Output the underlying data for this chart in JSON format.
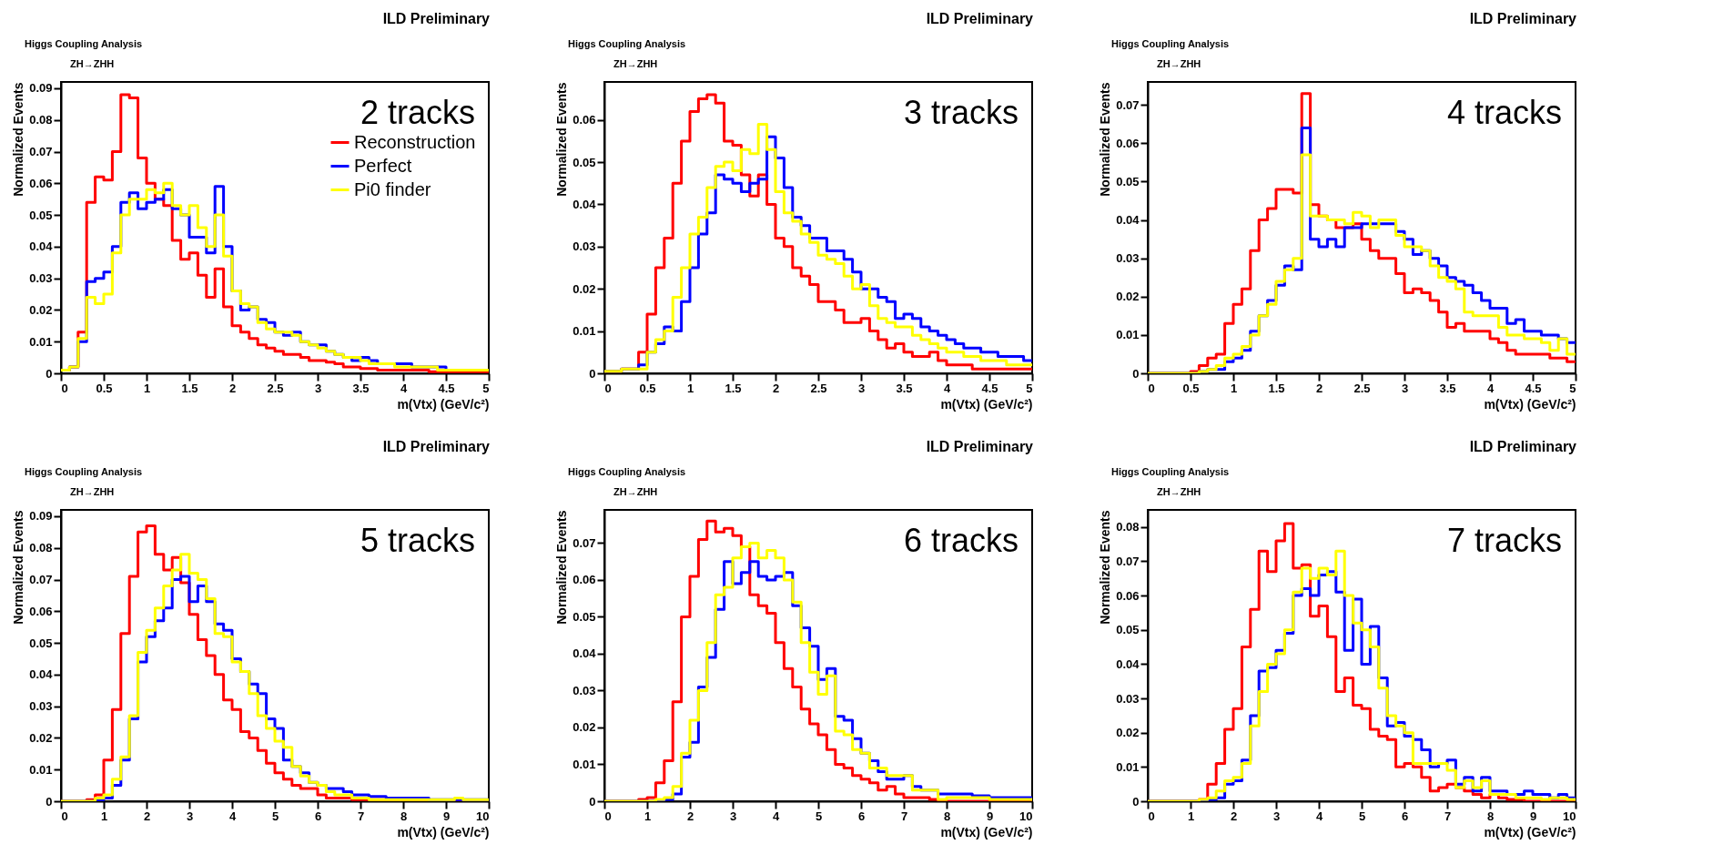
{
  "chart_data": [
    {
      "type": "histogram",
      "title": "ILD Preliminary",
      "annotations": [
        "Higgs Coupling Analysis",
        "ZH→ZHH",
        "2 tracks"
      ],
      "xlabel": "m(Vtx) (GeV/c²)",
      "ylabel": "Normalized Events",
      "legend": "top right",
      "xlim": [
        0,
        5
      ],
      "ylim": [
        0,
        0.092
      ],
      "xticks": [
        0,
        0.5,
        1,
        1.5,
        2,
        2.5,
        3,
        3.5,
        4,
        4.5,
        5
      ],
      "yticks": [
        0,
        0.01,
        0.02,
        0.03,
        0.04,
        0.05,
        0.06,
        0.07,
        0.08,
        0.09
      ],
      "bins": [
        0,
        0.1,
        0.2,
        0.3,
        0.4,
        0.5,
        0.6,
        0.7,
        0.8,
        0.9,
        1,
        1.1,
        1.2,
        1.3,
        1.4,
        1.5,
        1.6,
        1.7,
        1.8,
        1.9,
        2,
        2.1,
        2.2,
        2.3,
        2.4,
        2.5,
        2.6,
        2.7,
        2.8,
        2.9,
        3,
        3.1,
        3.2,
        3.3,
        3.4,
        3.5,
        3.6,
        3.7,
        3.8,
        3.9,
        4,
        4.1,
        4.2,
        4.3,
        4.4,
        4.5,
        4.6,
        4.7,
        4.8,
        4.9,
        5
      ],
      "series": [
        {
          "name": "Reconstruction",
          "color": "#ff0000",
          "values": [
            0.001,
            0.002,
            0.013,
            0.054,
            0.062,
            0.061,
            0.07,
            0.088,
            0.087,
            0.068,
            0.06,
            0.055,
            0.053,
            0.042,
            0.036,
            0.038,
            0.031,
            0.024,
            0.033,
            0.021,
            0.015,
            0.013,
            0.011,
            0.009,
            0.008,
            0.007,
            0.006,
            0.006,
            0.005,
            0.004,
            0.004,
            0.0035,
            0.003,
            0.002,
            0.002,
            0.0015,
            0.0015,
            0.001,
            0.001,
            0.001,
            0.001,
            0.001,
            0.001,
            0.0005,
            0.0005,
            0.0005,
            0.0005,
            0.0005,
            0.0005,
            0.0005
          ]
        },
        {
          "name": "Perfect",
          "color": "#0000ff",
          "values": [
            0.001,
            0.002,
            0.01,
            0.029,
            0.03,
            0.032,
            0.04,
            0.054,
            0.057,
            0.052,
            0.054,
            0.055,
            0.058,
            0.052,
            0.05,
            0.043,
            0.043,
            0.038,
            0.059,
            0.04,
            0.026,
            0.02,
            0.021,
            0.017,
            0.016,
            0.013,
            0.012,
            0.013,
            0.01,
            0.009,
            0.009,
            0.007,
            0.006,
            0.005,
            0.004,
            0.005,
            0.004,
            0.003,
            0.003,
            0.003,
            0.003,
            0.002,
            0.002,
            0.002,
            0.002,
            0.001,
            0.001,
            0.001,
            0.001,
            0.001
          ]
        },
        {
          "name": "Pi0 finder",
          "color": "#ffff00",
          "values": [
            0.001,
            0.002,
            0.011,
            0.024,
            0.022,
            0.025,
            0.038,
            0.05,
            0.055,
            0.055,
            0.058,
            0.057,
            0.06,
            0.053,
            0.05,
            0.053,
            0.046,
            0.04,
            0.05,
            0.037,
            0.026,
            0.022,
            0.021,
            0.016,
            0.014,
            0.013,
            0.013,
            0.012,
            0.01,
            0.009,
            0.008,
            0.007,
            0.006,
            0.005,
            0.005,
            0.004,
            0.003,
            0.003,
            0.003,
            0.002,
            0.002,
            0.002,
            0.002,
            0.002,
            0.001,
            0.001,
            0.001,
            0.001,
            0.001,
            0.001
          ]
        }
      ]
    },
    {
      "type": "histogram",
      "title": "ILD Preliminary",
      "annotations": [
        "Higgs Coupling Analysis",
        "ZH→ZHH",
        "3 tracks"
      ],
      "xlabel": "m(Vtx) (GeV/c²)",
      "ylabel": "Normalized Events",
      "xlim": [
        0,
        5
      ],
      "ylim": [
        0,
        0.069
      ],
      "xticks": [
        0,
        0.5,
        1,
        1.5,
        2,
        2.5,
        3,
        3.5,
        4,
        4.5,
        5
      ],
      "yticks": [
        0,
        0.01,
        0.02,
        0.03,
        0.04,
        0.05,
        0.06
      ],
      "bins": [
        0,
        0.1,
        0.2,
        0.3,
        0.4,
        0.5,
        0.6,
        0.7,
        0.8,
        0.9,
        1,
        1.1,
        1.2,
        1.3,
        1.4,
        1.5,
        1.6,
        1.7,
        1.8,
        1.9,
        2,
        2.1,
        2.2,
        2.3,
        2.4,
        2.5,
        2.6,
        2.7,
        2.8,
        2.9,
        3,
        3.1,
        3.2,
        3.3,
        3.4,
        3.5,
        3.6,
        3.7,
        3.8,
        3.9,
        4,
        4.1,
        4.2,
        4.3,
        4.4,
        4.5,
        4.6,
        4.7,
        4.8,
        4.9,
        5
      ],
      "series": [
        {
          "color": "#ff0000",
          "values": [
            0.0005,
            0.0005,
            0.001,
            0.001,
            0.005,
            0.014,
            0.025,
            0.032,
            0.045,
            0.055,
            0.062,
            0.065,
            0.066,
            0.064,
            0.055,
            0.054,
            0.047,
            0.042,
            0.047,
            0.04,
            0.032,
            0.03,
            0.025,
            0.023,
            0.021,
            0.017,
            0.017,
            0.015,
            0.012,
            0.012,
            0.013,
            0.01,
            0.008,
            0.006,
            0.007,
            0.005,
            0.004,
            0.004,
            0.005,
            0.003,
            0.002,
            0.002,
            0.002,
            0.001,
            0.001,
            0.001,
            0.001,
            0.001,
            0.001,
            0.001
          ]
        },
        {
          "color": "#0000ff",
          "values": [
            0.0005,
            0.0005,
            0.001,
            0.001,
            0.002,
            0.005,
            0.007,
            0.011,
            0.01,
            0.017,
            0.025,
            0.033,
            0.038,
            0.047,
            0.046,
            0.045,
            0.043,
            0.045,
            0.046,
            0.056,
            0.051,
            0.044,
            0.037,
            0.035,
            0.032,
            0.032,
            0.029,
            0.029,
            0.027,
            0.024,
            0.02,
            0.02,
            0.018,
            0.017,
            0.013,
            0.014,
            0.013,
            0.011,
            0.01,
            0.009,
            0.008,
            0.007,
            0.006,
            0.006,
            0.005,
            0.005,
            0.004,
            0.004,
            0.004,
            0.003
          ]
        },
        {
          "color": "#ffff00",
          "values": [
            0.0005,
            0.0005,
            0.001,
            0.001,
            0.001,
            0.005,
            0.008,
            0.01,
            0.018,
            0.025,
            0.033,
            0.037,
            0.044,
            0.049,
            0.05,
            0.048,
            0.053,
            0.052,
            0.059,
            0.053,
            0.043,
            0.038,
            0.036,
            0.033,
            0.031,
            0.028,
            0.027,
            0.026,
            0.023,
            0.02,
            0.021,
            0.016,
            0.013,
            0.012,
            0.011,
            0.011,
            0.009,
            0.008,
            0.007,
            0.006,
            0.005,
            0.005,
            0.004,
            0.004,
            0.003,
            0.003,
            0.003,
            0.002,
            0.002,
            0.002
          ]
        }
      ]
    },
    {
      "type": "histogram",
      "title": "ILD Preliminary",
      "annotations": [
        "Higgs Coupling Analysis",
        "ZH→ZHH",
        "4 tracks"
      ],
      "xlabel": "m(Vtx) (GeV/c²)",
      "ylabel": "Normalized Events",
      "xlim": [
        0,
        5
      ],
      "ylim": [
        0,
        0.076
      ],
      "xticks": [
        0,
        0.5,
        1,
        1.5,
        2,
        2.5,
        3,
        3.5,
        4,
        4.5,
        5
      ],
      "yticks": [
        0,
        0.01,
        0.02,
        0.03,
        0.04,
        0.05,
        0.06,
        0.07
      ],
      "bins": [
        0,
        0.1,
        0.2,
        0.3,
        0.4,
        0.5,
        0.6,
        0.7,
        0.8,
        0.9,
        1,
        1.1,
        1.2,
        1.3,
        1.4,
        1.5,
        1.6,
        1.7,
        1.8,
        1.9,
        2,
        2.1,
        2.2,
        2.3,
        2.4,
        2.5,
        2.6,
        2.7,
        2.8,
        2.9,
        3,
        3.1,
        3.2,
        3.3,
        3.4,
        3.5,
        3.6,
        3.7,
        3.8,
        3.9,
        4,
        4.1,
        4.2,
        4.3,
        4.4,
        4.5,
        4.6,
        4.7,
        4.8,
        4.9,
        5
      ],
      "series": [
        {
          "color": "#ff0000",
          "values": [
            0,
            0,
            0,
            0,
            0,
            0.0005,
            0.002,
            0.004,
            0.005,
            0.013,
            0.018,
            0.022,
            0.032,
            0.04,
            0.043,
            0.048,
            0.048,
            0.047,
            0.073,
            0.044,
            0.041,
            0.04,
            0.038,
            0.038,
            0.039,
            0.035,
            0.032,
            0.03,
            0.03,
            0.026,
            0.021,
            0.022,
            0.021,
            0.019,
            0.016,
            0.012,
            0.013,
            0.011,
            0.011,
            0.011,
            0.009,
            0.008,
            0.006,
            0.005,
            0.005,
            0.005,
            0.005,
            0.004,
            0.004,
            0.003
          ]
        },
        {
          "color": "#0000ff",
          "values": [
            0,
            0,
            0,
            0,
            0,
            0,
            0.0005,
            0.001,
            0.001,
            0.003,
            0.004,
            0.006,
            0.011,
            0.015,
            0.019,
            0.023,
            0.028,
            0.027,
            0.064,
            0.035,
            0.033,
            0.035,
            0.033,
            0.038,
            0.038,
            0.039,
            0.039,
            0.039,
            0.039,
            0.037,
            0.035,
            0.031,
            0.032,
            0.03,
            0.028,
            0.025,
            0.024,
            0.023,
            0.021,
            0.019,
            0.017,
            0.017,
            0.013,
            0.014,
            0.011,
            0.011,
            0.01,
            0.01,
            0.009,
            0.008
          ]
        },
        {
          "color": "#ffff00",
          "values": [
            0,
            0,
            0,
            0,
            0,
            0,
            0.0005,
            0.001,
            0.002,
            0.004,
            0.005,
            0.007,
            0.01,
            0.015,
            0.018,
            0.024,
            0.027,
            0.03,
            0.057,
            0.041,
            0.041,
            0.04,
            0.04,
            0.039,
            0.042,
            0.041,
            0.038,
            0.04,
            0.04,
            0.036,
            0.033,
            0.033,
            0.032,
            0.028,
            0.025,
            0.024,
            0.022,
            0.016,
            0.015,
            0.015,
            0.015,
            0.012,
            0.01,
            0.01,
            0.009,
            0.009,
            0.008,
            0.006,
            0.009,
            0.005
          ]
        }
      ]
    },
    {
      "type": "histogram",
      "title": "ILD Preliminary",
      "annotations": [
        "Higgs Coupling Analysis",
        "ZH→ZHH",
        "5 tracks"
      ],
      "xlabel": "m(Vtx) (GeV/c²)",
      "ylabel": "Normalized Events",
      "xlim": [
        0,
        10
      ],
      "ylim": [
        0,
        0.092
      ],
      "xticks": [
        0,
        1,
        2,
        3,
        4,
        5,
        6,
        7,
        8,
        9,
        10
      ],
      "yticks": [
        0,
        0.01,
        0.02,
        0.03,
        0.04,
        0.05,
        0.06,
        0.07,
        0.08,
        0.09
      ],
      "bins": [
        0,
        0.2,
        0.4,
        0.6,
        0.8,
        1,
        1.2,
        1.4,
        1.6,
        1.8,
        2,
        2.2,
        2.4,
        2.6,
        2.8,
        3,
        3.2,
        3.4,
        3.6,
        3.8,
        4,
        4.2,
        4.4,
        4.6,
        4.8,
        5,
        5.2,
        5.4,
        5.6,
        5.8,
        6,
        6.2,
        6.4,
        6.6,
        6.8,
        7,
        7.2,
        7.4,
        7.6,
        7.8,
        8,
        8.2,
        8.4,
        8.6,
        8.8,
        9,
        9.2,
        9.4,
        9.6,
        9.8,
        10
      ],
      "series": [
        {
          "color": "#ff0000",
          "values": [
            0,
            0,
            0,
            0.0005,
            0.002,
            0.013,
            0.029,
            0.053,
            0.071,
            0.085,
            0.087,
            0.078,
            0.073,
            0.077,
            0.069,
            0.059,
            0.051,
            0.046,
            0.04,
            0.032,
            0.029,
            0.022,
            0.02,
            0.016,
            0.012,
            0.009,
            0.007,
            0.005,
            0.004,
            0.004,
            0.002,
            0.001,
            0.001,
            0.001,
            0.0005,
            0.0005,
            0.0005,
            0.0005,
            0.0005,
            0.0005,
            0.0005,
            0.0005,
            0.0005,
            0,
            0,
            0,
            0,
            0,
            0,
            0
          ]
        },
        {
          "color": "#0000ff",
          "values": [
            0,
            0,
            0,
            0,
            0.0005,
            0.001,
            0.005,
            0.013,
            0.026,
            0.044,
            0.052,
            0.057,
            0.061,
            0.07,
            0.071,
            0.063,
            0.068,
            0.063,
            0.056,
            0.054,
            0.045,
            0.041,
            0.037,
            0.034,
            0.026,
            0.023,
            0.013,
            0.011,
            0.009,
            0.006,
            0.005,
            0.004,
            0.004,
            0.003,
            0.002,
            0.002,
            0.0015,
            0.0015,
            0.001,
            0.001,
            0.001,
            0.001,
            0.001,
            0.0005,
            0.0005,
            0.0005,
            0.0005,
            0.0005,
            0.0005,
            0.0005
          ]
        },
        {
          "color": "#ffff00",
          "values": [
            0,
            0,
            0,
            0,
            0.001,
            0.002,
            0.007,
            0.014,
            0.027,
            0.047,
            0.054,
            0.061,
            0.068,
            0.073,
            0.078,
            0.072,
            0.07,
            0.064,
            0.053,
            0.052,
            0.044,
            0.041,
            0.034,
            0.027,
            0.023,
            0.019,
            0.017,
            0.011,
            0.008,
            0.006,
            0.005,
            0.003,
            0.002,
            0.002,
            0.001,
            0.001,
            0.0005,
            0.0005,
            0.0005,
            0.0005,
            0.0005,
            0.0005,
            0.0005,
            0.0005,
            0.0005,
            0.0005,
            0.001,
            0.0005,
            0.0005,
            0.0005
          ]
        }
      ]
    },
    {
      "type": "histogram",
      "title": "ILD Preliminary",
      "annotations": [
        "Higgs Coupling Analysis",
        "ZH→ZHH",
        "6 tracks"
      ],
      "xlabel": "m(Vtx) (GeV/c²)",
      "ylabel": "Normalized Events",
      "xlim": [
        0,
        10
      ],
      "ylim": [
        0,
        0.079
      ],
      "xticks": [
        0,
        1,
        2,
        3,
        4,
        5,
        6,
        7,
        8,
        9,
        10
      ],
      "yticks": [
        0,
        0.01,
        0.02,
        0.03,
        0.04,
        0.05,
        0.06,
        0.07
      ],
      "bins": [
        0,
        0.2,
        0.4,
        0.6,
        0.8,
        1,
        1.2,
        1.4,
        1.6,
        1.8,
        2,
        2.2,
        2.4,
        2.6,
        2.8,
        3,
        3.2,
        3.4,
        3.6,
        3.8,
        4,
        4.2,
        4.4,
        4.6,
        4.8,
        5,
        5.2,
        5.4,
        5.6,
        5.8,
        6,
        6.2,
        6.4,
        6.6,
        6.8,
        7,
        7.2,
        7.4,
        7.6,
        7.8,
        8,
        8.2,
        8.4,
        8.6,
        8.8,
        9,
        9.2,
        9.4,
        9.6,
        9.8,
        10
      ],
      "series": [
        {
          "color": "#ff0000",
          "values": [
            0,
            0,
            0,
            0,
            0.0005,
            0.001,
            0.005,
            0.011,
            0.027,
            0.05,
            0.061,
            0.071,
            0.076,
            0.073,
            0.074,
            0.072,
            0.069,
            0.056,
            0.053,
            0.051,
            0.043,
            0.036,
            0.031,
            0.025,
            0.021,
            0.018,
            0.014,
            0.01,
            0.009,
            0.007,
            0.006,
            0.005,
            0.003,
            0.004,
            0.002,
            0.001,
            0.001,
            0.001,
            0.0005,
            0,
            0,
            0,
            0,
            0,
            0,
            0,
            0,
            0,
            0,
            0
          ]
        },
        {
          "color": "#0000ff",
          "values": [
            0,
            0,
            0,
            0,
            0,
            0,
            0,
            0.0005,
            0.002,
            0.012,
            0.016,
            0.031,
            0.039,
            0.052,
            0.065,
            0.059,
            0.062,
            0.065,
            0.061,
            0.06,
            0.061,
            0.062,
            0.053,
            0.047,
            0.042,
            0.033,
            0.036,
            0.023,
            0.022,
            0.017,
            0.013,
            0.011,
            0.008,
            0.006,
            0.006,
            0.007,
            0.004,
            0.003,
            0.003,
            0.002,
            0.002,
            0.002,
            0.002,
            0.0015,
            0.0015,
            0.001,
            0.001,
            0.001,
            0.001,
            0.001
          ]
        },
        {
          "color": "#ffff00",
          "values": [
            0,
            0,
            0,
            0,
            0,
            0,
            0.0005,
            0.001,
            0.004,
            0.013,
            0.022,
            0.03,
            0.043,
            0.056,
            0.058,
            0.066,
            0.069,
            0.07,
            0.066,
            0.068,
            0.066,
            0.06,
            0.054,
            0.043,
            0.035,
            0.029,
            0.034,
            0.019,
            0.018,
            0.014,
            0.013,
            0.009,
            0.009,
            0.007,
            0.007,
            0.007,
            0.003,
            0.003,
            0.003,
            0.0005,
            0.001,
            0.001,
            0.001,
            0.001,
            0.001,
            0.0005,
            0.0005,
            0.0005,
            0.0005,
            0.0005
          ]
        }
      ]
    },
    {
      "type": "histogram",
      "title": "ILD Preliminary",
      "annotations": [
        "Higgs Coupling Analysis",
        "ZH→ZHH",
        "7 tracks"
      ],
      "xlabel": "m(Vtx) (GeV/c²)",
      "ylabel": "Normalized Events",
      "xlim": [
        0,
        10
      ],
      "ylim": [
        0,
        0.085
      ],
      "xticks": [
        0,
        1,
        2,
        3,
        4,
        5,
        6,
        7,
        8,
        9,
        10
      ],
      "yticks": [
        0,
        0.01,
        0.02,
        0.03,
        0.04,
        0.05,
        0.06,
        0.07,
        0.08
      ],
      "bins": [
        0,
        0.2,
        0.4,
        0.6,
        0.8,
        1,
        1.2,
        1.4,
        1.6,
        1.8,
        2,
        2.2,
        2.4,
        2.6,
        2.8,
        3,
        3.2,
        3.4,
        3.6,
        3.8,
        4,
        4.2,
        4.4,
        4.6,
        4.8,
        5,
        5.2,
        5.4,
        5.6,
        5.8,
        6,
        6.2,
        6.4,
        6.6,
        6.8,
        7,
        7.2,
        7.4,
        7.6,
        7.8,
        8,
        8.2,
        8.4,
        8.6,
        8.8,
        9,
        9.2,
        9.4,
        9.6,
        9.8,
        10
      ],
      "series": [
        {
          "color": "#ff0000",
          "values": [
            0,
            0,
            0,
            0,
            0,
            0,
            0.0005,
            0.005,
            0.011,
            0.021,
            0.027,
            0.045,
            0.056,
            0.073,
            0.067,
            0.076,
            0.081,
            0.068,
            0.069,
            0.054,
            0.057,
            0.048,
            0.032,
            0.036,
            0.028,
            0.027,
            0.021,
            0.019,
            0.018,
            0.01,
            0.011,
            0.01,
            0.007,
            0.003,
            0.004,
            0.005,
            0.004,
            0.003,
            0.002,
            0.001,
            0.002,
            0.001,
            0.0005,
            0.0005,
            0,
            0,
            0,
            0,
            0,
            0
          ]
        },
        {
          "color": "#0000ff",
          "values": [
            0,
            0,
            0,
            0,
            0,
            0,
            0,
            0.0005,
            0.001,
            0.005,
            0.006,
            0.012,
            0.025,
            0.038,
            0.039,
            0.044,
            0.049,
            0.06,
            0.062,
            0.06,
            0.066,
            0.067,
            0.061,
            0.044,
            0.059,
            0.04,
            0.051,
            0.036,
            0.022,
            0.023,
            0.019,
            0.018,
            0.015,
            0.01,
            0.011,
            0.012,
            0.005,
            0.007,
            0.003,
            0.007,
            0.003,
            0.003,
            0.002,
            0.002,
            0.003,
            0.002,
            0.002,
            0.001,
            0.002,
            0.001
          ]
        },
        {
          "color": "#ffff00",
          "values": [
            0,
            0,
            0,
            0,
            0,
            0,
            0.0005,
            0.001,
            0.003,
            0.006,
            0.007,
            0.011,
            0.022,
            0.032,
            0.04,
            0.043,
            0.05,
            0.061,
            0.068,
            0.065,
            0.068,
            0.066,
            0.073,
            0.06,
            0.052,
            0.05,
            0.045,
            0.033,
            0.025,
            0.022,
            0.02,
            0.011,
            0.011,
            0.011,
            0.011,
            0.009,
            0.004,
            0.006,
            0.004,
            0.006,
            0.002,
            0.002,
            0.002,
            0.001,
            0.001,
            0.001,
            0.0005,
            0.001,
            0.001,
            0.0005
          ]
        }
      ]
    }
  ]
}
